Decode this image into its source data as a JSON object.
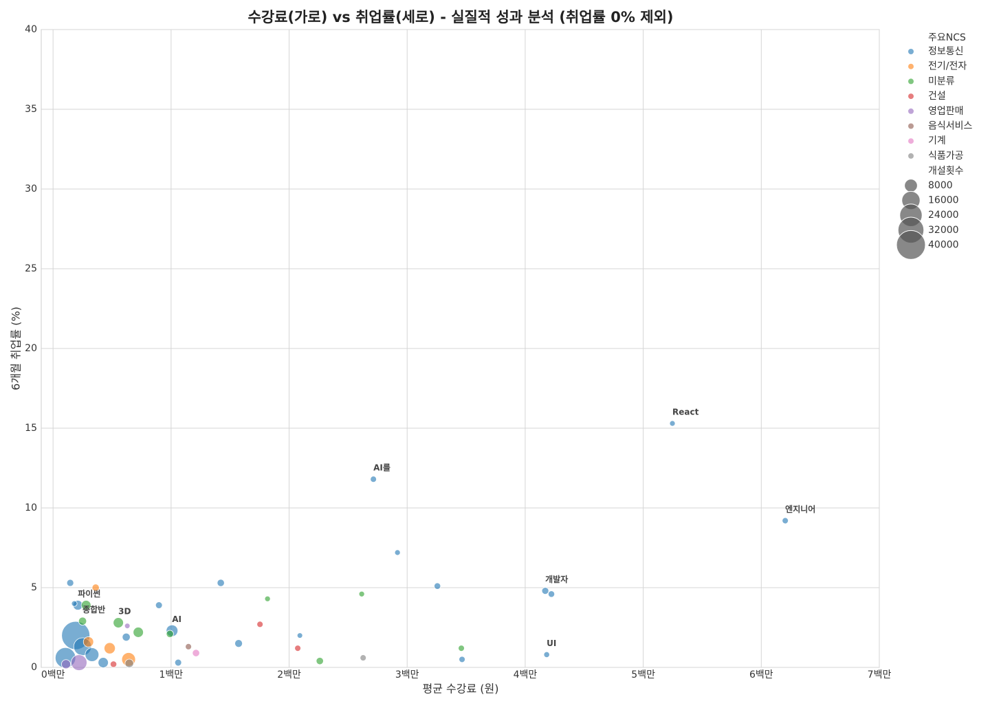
{
  "chart_data": {
    "type": "scatter",
    "title": "수강료(가로) vs 취업률(세로) - 실질적 성과 분석 (취업률 0% 제외)",
    "x_label": "평균 수강료 (원)",
    "y_label": "6개월 취업률 (%)",
    "xlim": [
      -100000,
      7000000
    ],
    "xticks": [
      {
        "value": 0,
        "label": "0백만"
      },
      {
        "value": 1000000,
        "label": "1백만"
      },
      {
        "value": 2000000,
        "label": "2백만"
      },
      {
        "value": 3000000,
        "label": "3백만"
      },
      {
        "value": 4000000,
        "label": "4백만"
      },
      {
        "value": 5000000,
        "label": "5백만"
      },
      {
        "value": 6000000,
        "label": "6백만"
      },
      {
        "value": 7000000,
        "label": "7백만"
      }
    ],
    "ylim": [
      0,
      40
    ],
    "yticks": [
      0,
      5,
      10,
      15,
      20,
      25,
      30,
      35,
      40
    ],
    "grid": true,
    "legend_title": "주요NCS",
    "legend_position": "outside-right",
    "size_legend": {
      "title": "개설횟수",
      "values": [
        8000,
        16000,
        24000,
        32000,
        40000
      ]
    },
    "series": [
      {
        "name": "정보통신",
        "color": "#1f77b4",
        "x": [
          145600,
          1421000,
          5247000,
          2714000,
          6203000,
          2918000,
          3256000,
          4170000,
          4222000,
          4182000,
          3465000,
          2091000,
          1572000,
          1060000,
          1008000,
          897000,
          210000,
          180000,
          192000,
          105000,
          425000,
          250000,
          330000,
          620000
        ],
        "values": [
          5.3,
          5.3,
          15.3,
          11.8,
          9.2,
          7.2,
          5.1,
          4.8,
          4.6,
          0.8,
          0.5,
          2.0,
          1.5,
          0.3,
          2.3,
          3.9,
          3.9,
          4.0,
          2.0,
          0.6,
          0.3,
          1.3,
          0.8,
          1.9
        ],
        "sizes": [
          2300,
          2500,
          1500,
          1800,
          1800,
          1500,
          2000,
          2300,
          2000,
          1600,
          1800,
          1400,
          2800,
          2200,
          6500,
          2200,
          4500,
          1500,
          38000,
          20000,
          5000,
          15000,
          9000,
          3000
        ],
        "labels": [
          null,
          null,
          "React",
          "AI를",
          "엔지니어",
          null,
          null,
          "개발자",
          null,
          "UI",
          null,
          null,
          null,
          null,
          "AI",
          null,
          "파이썬",
          null,
          null,
          null,
          null,
          null,
          null,
          null
        ]
      },
      {
        "name": "전기/전자",
        "color": "#ff7f0e",
        "x": [
          361000,
          640000,
          480000,
          300000
        ],
        "values": [
          5.0,
          0.5,
          1.2,
          1.6
        ],
        "sizes": [
          2500,
          9000,
          6000,
          5000
        ],
        "labels": [
          null,
          null,
          null,
          null
        ]
      },
      {
        "name": "미분류",
        "color": "#2ca02c",
        "x": [
          280000,
          553000,
          722000,
          990000,
          1817000,
          2615000,
          3459000,
          2260000,
          250000
        ],
        "values": [
          3.9,
          2.8,
          2.2,
          2.1,
          4.3,
          4.6,
          1.2,
          0.4,
          2.9
        ],
        "sizes": [
          4500,
          5000,
          5000,
          2500,
          1500,
          1500,
          1800,
          2500,
          3000
        ],
        "labels": [
          null,
          "3D",
          null,
          null,
          null,
          null,
          null,
          null,
          "종합반"
        ]
      },
      {
        "name": "건설",
        "color": "#d62728",
        "x": [
          1753000,
          2073000,
          512000
        ],
        "values": [
          2.7,
          1.2,
          0.2
        ],
        "sizes": [
          1800,
          1800,
          2000
        ],
        "labels": [
          null,
          null,
          null
        ]
      },
      {
        "name": "영업판매",
        "color": "#9467bd",
        "x": [
          629000,
          220000,
          110000
        ],
        "values": [
          2.6,
          0.3,
          0.2
        ],
        "sizes": [
          1400,
          12000,
          4000
        ],
        "labels": [
          null,
          null,
          null
        ]
      },
      {
        "name": "음식서비스",
        "color": "#8c564b",
        "x": [
          1147000
        ],
        "values": [
          1.3
        ],
        "sizes": [
          1800
        ],
        "labels": [
          null
        ]
      },
      {
        "name": "기계",
        "color": "#e377c2",
        "x": [
          1211000
        ],
        "values": [
          0.9
        ],
        "sizes": [
          2500
        ],
        "labels": [
          null
        ]
      },
      {
        "name": "식품가공",
        "color": "#7f7f7f",
        "x": [
          2627000,
          646000
        ],
        "values": [
          0.6,
          0.25
        ],
        "sizes": [
          1800,
          3500
        ],
        "labels": [
          null,
          null
        ]
      }
    ]
  }
}
